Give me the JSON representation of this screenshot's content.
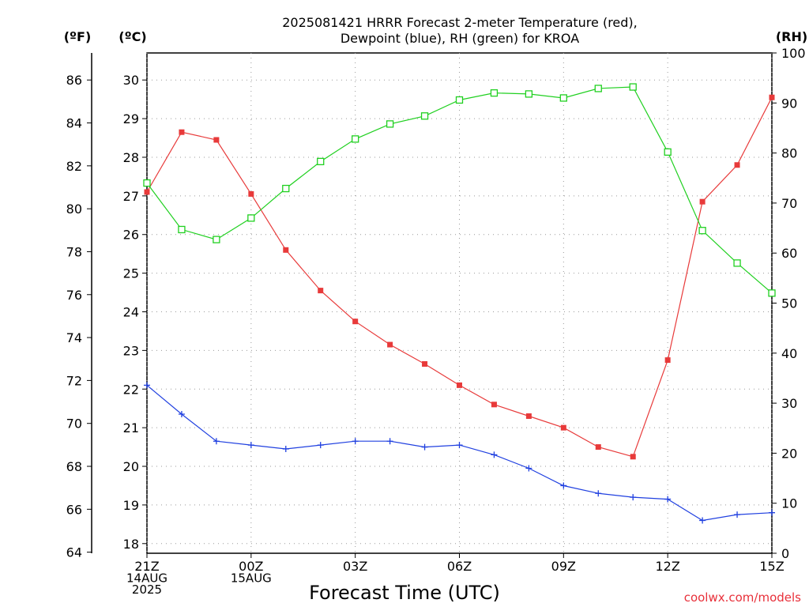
{
  "chart_data": {
    "type": "line",
    "title_line1": "2025081421 HRRR Forecast 2-meter Temperature (red),",
    "title_line2": "Dewpoint (blue), RH (green) for KROA",
    "xlabel": "Forecast Time (UTC)",
    "credit": "coolwx.com/models",
    "unit_labels": {
      "fahrenheit": "(ºF)",
      "celsius": "(ºC)",
      "rh": "(RH)"
    },
    "x": [
      0,
      1,
      2,
      3,
      4,
      5,
      6,
      7,
      8,
      9,
      10,
      11,
      12,
      13,
      14,
      15,
      16,
      17,
      18
    ],
    "x_ticks": [
      {
        "x": 0,
        "lines": [
          "21Z",
          "14AUG",
          "2025"
        ]
      },
      {
        "x": 3,
        "lines": [
          "00Z",
          "15AUG"
        ]
      },
      {
        "x": 6,
        "lines": [
          "03Z"
        ]
      },
      {
        "x": 9,
        "lines": [
          "06Z"
        ]
      },
      {
        "x": 12,
        "lines": [
          "09Z"
        ]
      },
      {
        "x": 15,
        "lines": [
          "12Z"
        ]
      },
      {
        "x": 18,
        "lines": [
          "15Z"
        ]
      }
    ],
    "celsius_range": [
      17.75,
      30.7
    ],
    "celsius_ticks": [
      18,
      19,
      20,
      21,
      22,
      23,
      24,
      25,
      26,
      27,
      28,
      29,
      30
    ],
    "fahrenheit_ticks": [
      64,
      66,
      68,
      70,
      72,
      74,
      76,
      78,
      80,
      82,
      84,
      86
    ],
    "rh_range": [
      0,
      100
    ],
    "rh_ticks": [
      0,
      10,
      20,
      30,
      40,
      50,
      60,
      70,
      80,
      90,
      100
    ],
    "grid": true,
    "series": [
      {
        "color": "#e83a3a",
        "axis": "celsius",
        "marker": "filled-square",
        "values": [
          27.1,
          28.65,
          28.45,
          27.05,
          25.6,
          24.55,
          23.75,
          23.15,
          22.65,
          22.1,
          21.6,
          21.3,
          21.0,
          20.5,
          20.25,
          22.75,
          26.85,
          27.8,
          29.55
        ]
      },
      {
        "color": "#2040e0",
        "axis": "celsius",
        "marker": "plus",
        "values": [
          22.1,
          21.35,
          20.65,
          20.55,
          20.45,
          20.55,
          20.65,
          20.65,
          20.5,
          20.55,
          20.3,
          19.95,
          19.5,
          19.3,
          19.2,
          19.15,
          18.6,
          18.75,
          18.8
        ]
      },
      {
        "color": "#20d020",
        "axis": "rh",
        "marker": "open-square",
        "values": [
          74.0,
          64.7,
          62.7,
          67.0,
          72.9,
          78.3,
          82.8,
          85.8,
          87.4,
          90.6,
          92.0,
          91.8,
          91.0,
          92.9,
          93.2,
          80.2,
          64.5,
          58.0,
          52.0
        ]
      }
    ]
  }
}
